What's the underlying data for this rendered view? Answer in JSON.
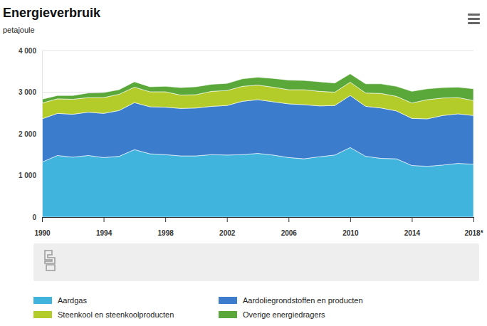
{
  "chart_data": {
    "type": "area",
    "stacked": true,
    "grid": true,
    "legend": "bottom",
    "title": "Energieverbruik",
    "subtitle": "petajoule",
    "x": [
      1990,
      1991,
      1992,
      1993,
      1994,
      1995,
      1996,
      1997,
      1998,
      1999,
      2000,
      2001,
      2002,
      2003,
      2004,
      2005,
      2006,
      2007,
      2008,
      2009,
      2010,
      2011,
      2012,
      2013,
      2014,
      2015,
      2016,
      2017,
      2018
    ],
    "xlim": [
      1990,
      2018
    ],
    "xticks": [
      1990,
      1994,
      1998,
      2002,
      2006,
      2010,
      2014,
      {
        "value": 2018,
        "label": "2018*"
      }
    ],
    "ylim": [
      0,
      4000
    ],
    "yticks": [
      0,
      {
        "value": 1000,
        "label": "1 000"
      },
      {
        "value": 2000,
        "label": "2 000"
      },
      {
        "value": 3000,
        "label": "3 000"
      },
      {
        "value": 4000,
        "label": "4 000"
      }
    ],
    "series": [
      {
        "name": "Aardgas",
        "color": "#40b4dc",
        "values": [
          1320,
          1480,
          1440,
          1480,
          1430,
          1460,
          1620,
          1520,
          1500,
          1470,
          1470,
          1500,
          1490,
          1500,
          1530,
          1490,
          1430,
          1400,
          1450,
          1490,
          1670,
          1460,
          1410,
          1400,
          1240,
          1220,
          1250,
          1290,
          1270
        ]
      },
      {
        "name": "Aardoliegrondstoffen en producten",
        "color": "#3b7ccd",
        "values": [
          1040,
          1010,
          1030,
          1040,
          1060,
          1100,
          1130,
          1130,
          1140,
          1140,
          1150,
          1160,
          1190,
          1280,
          1290,
          1280,
          1290,
          1300,
          1220,
          1190,
          1250,
          1200,
          1210,
          1150,
          1130,
          1140,
          1190,
          1190,
          1170
        ]
      },
      {
        "name": "Steenkool en steenkoolproducten",
        "color": "#b3cc29",
        "values": [
          380,
          350,
          360,
          350,
          380,
          390,
          370,
          360,
          370,
          320,
          320,
          360,
          360,
          360,
          350,
          350,
          340,
          360,
          350,
          320,
          320,
          320,
          350,
          350,
          370,
          460,
          420,
          390,
          360
        ]
      },
      {
        "name": "Overige energiedragers",
        "color": "#5aa83a",
        "values": [
          90,
          80,
          90,
          110,
          120,
          110,
          130,
          120,
          130,
          180,
          190,
          170,
          170,
          180,
          190,
          210,
          230,
          220,
          230,
          220,
          200,
          220,
          230,
          240,
          280,
          260,
          250,
          250,
          280
        ]
      }
    ]
  }
}
